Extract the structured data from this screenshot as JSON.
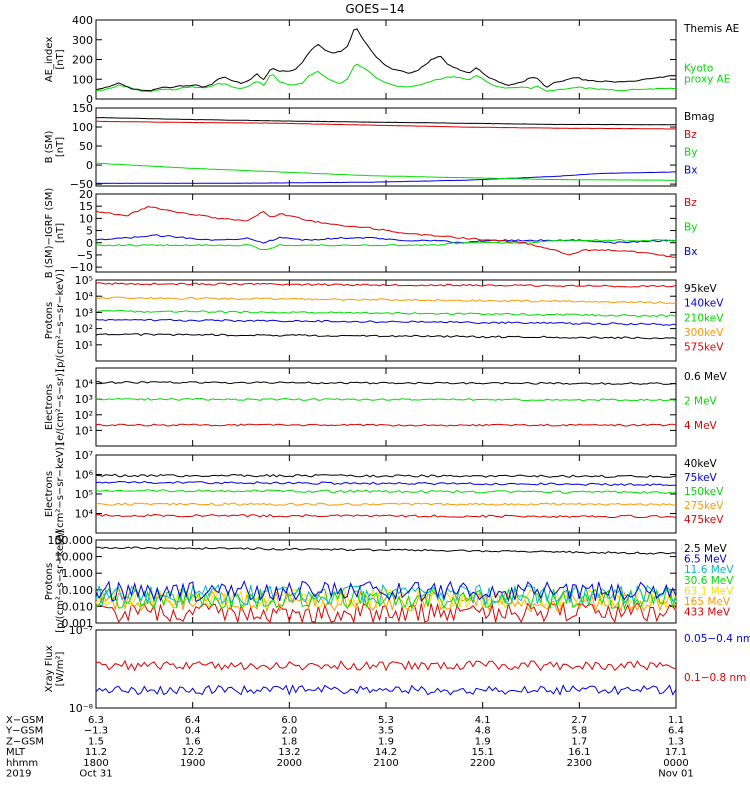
{
  "title": "GOES−14",
  "chart_data": [
    {
      "type": "line",
      "ylabel": [
        "AE_index",
        "[nT]"
      ],
      "ylim": [
        0,
        400
      ],
      "yticks": [
        "400",
        "300",
        "200",
        "100",
        "0"
      ],
      "ytick_values": [
        400,
        300,
        200,
        100,
        0
      ],
      "series": [
        {
          "name": "Kyoto proxy AE",
          "color": "#00dd00",
          "label_lines": [
            "Kyoto",
            "proxy AE"
          ],
          "x": [
            0,
            5,
            10,
            15,
            20,
            25,
            30,
            35,
            40,
            45,
            50,
            55,
            60,
            65,
            70,
            75,
            80,
            85,
            90,
            95,
            100,
            105,
            110,
            115,
            120,
            125,
            130,
            135,
            140,
            145,
            150,
            155,
            160,
            165,
            170,
            175,
            180,
            185,
            190,
            195,
            200,
            205,
            210,
            215,
            220,
            225,
            230,
            235,
            240,
            245,
            250,
            255,
            260,
            265,
            270,
            275,
            280,
            285,
            290,
            295,
            300,
            305,
            310,
            315,
            320,
            330,
            345,
            360,
            380
          ],
          "values": [
            40,
            45,
            55,
            70,
            65,
            50,
            40,
            35,
            45,
            50,
            45,
            55,
            60,
            60,
            55,
            65,
            80,
            75,
            60,
            55,
            65,
            90,
            70,
            130,
            90,
            75,
            70,
            80,
            120,
            140,
            110,
            90,
            80,
            100,
            180,
            160,
            130,
            100,
            80,
            70,
            65,
            60,
            70,
            80,
            90,
            100,
            110,
            115,
            105,
            100,
            120,
            95,
            70,
            60,
            55,
            60,
            60,
            55,
            65,
            40,
            45,
            50,
            55,
            60,
            55,
            50,
            45,
            50,
            55
          ]
        },
        {
          "name": "Themis AE",
          "color": "#000000",
          "label_lines": [
            "Themis AE"
          ],
          "x": [
            0,
            5,
            10,
            15,
            20,
            25,
            30,
            35,
            40,
            45,
            50,
            55,
            60,
            65,
            70,
            75,
            80,
            85,
            90,
            95,
            100,
            105,
            110,
            115,
            120,
            125,
            130,
            135,
            140,
            145,
            150,
            155,
            160,
            165,
            170,
            175,
            180,
            185,
            190,
            195,
            200,
            205,
            210,
            215,
            220,
            225,
            230,
            235,
            240,
            245,
            250,
            255,
            260,
            265,
            270,
            275,
            280,
            285,
            290,
            295,
            300,
            305,
            310,
            315,
            320,
            330,
            345,
            360,
            380
          ],
          "values": [
            45,
            55,
            65,
            80,
            60,
            50,
            45,
            40,
            50,
            60,
            55,
            70,
            65,
            70,
            60,
            70,
            100,
            110,
            90,
            80,
            90,
            130,
            95,
            160,
            140,
            140,
            150,
            180,
            240,
            280,
            250,
            230,
            240,
            270,
            370,
            300,
            250,
            200,
            170,
            150,
            140,
            130,
            140,
            170,
            200,
            220,
            180,
            160,
            140,
            130,
            160,
            120,
            100,
            80,
            70,
            80,
            90,
            110,
            100,
            60,
            80,
            90,
            100,
            110,
            95,
            90,
            85,
            100,
            120
          ]
        }
      ]
    },
    {
      "type": "line",
      "ylabel": [
        "B (SM)",
        "[nT]"
      ],
      "ylim": [
        -55,
        150
      ],
      "yticks": [
        "150",
        "100",
        "50",
        "0",
        "−50"
      ],
      "ytick_values": [
        150,
        100,
        50,
        0,
        -50
      ],
      "series": [
        {
          "name": "Bx",
          "color": "#0000dd",
          "x": [
            0,
            60,
            120,
            180,
            240,
            300,
            330,
            380
          ],
          "values": [
            -48,
            -48,
            -47,
            -45,
            -40,
            -30,
            -22,
            -18
          ]
        },
        {
          "name": "By",
          "color": "#00dd00",
          "x": [
            0,
            60,
            120,
            180,
            240,
            300,
            380
          ],
          "values": [
            5,
            -8,
            -18,
            -28,
            -33,
            -38,
            -40
          ]
        },
        {
          "name": "Bz",
          "color": "#dd0000",
          "x": [
            0,
            60,
            120,
            180,
            240,
            300,
            380
          ],
          "values": [
            115,
            112,
            110,
            105,
            100,
            97,
            95
          ]
        },
        {
          "name": "Bmag",
          "color": "#000000",
          "x": [
            0,
            60,
            120,
            180,
            240,
            300,
            380
          ],
          "values": [
            125,
            120,
            116,
            113,
            110,
            107,
            106
          ]
        }
      ]
    },
    {
      "type": "line",
      "ylabel": [
        "B (SM)−IGRF (SM)",
        "[nT]"
      ],
      "ylim": [
        -12,
        20
      ],
      "yticks": [
        "20",
        "15",
        "10",
        "5",
        "0",
        "−5",
        "−10"
      ],
      "ytick_values": [
        20,
        15,
        10,
        5,
        0,
        -5,
        -10
      ],
      "series": [
        {
          "name": "Bx",
          "color": "#0000dd",
          "x": [
            0,
            20,
            40,
            60,
            80,
            100,
            110,
            120,
            140,
            160,
            180,
            200,
            220,
            240,
            260,
            280,
            300,
            320,
            340,
            380
          ],
          "values": [
            1,
            2,
            3,
            2,
            1,
            2,
            0,
            2,
            1,
            2,
            2,
            1,
            1,
            0,
            1,
            1,
            1,
            1,
            0,
            1
          ]
        },
        {
          "name": "By",
          "color": "#00dd00",
          "x": [
            0,
            20,
            40,
            60,
            80,
            100,
            110,
            120,
            140,
            160,
            180,
            200,
            220,
            240,
            260,
            280,
            300,
            320,
            340,
            380
          ],
          "values": [
            -1,
            -1,
            -1,
            -1,
            -1,
            -1,
            -3,
            -1,
            -1,
            -1,
            -1,
            -1,
            -1,
            0,
            0,
            0,
            1,
            1,
            1,
            1
          ]
        },
        {
          "name": "Bz",
          "color": "#dd0000",
          "x": [
            0,
            20,
            35,
            40,
            60,
            80,
            100,
            110,
            115,
            120,
            140,
            160,
            180,
            200,
            220,
            240,
            260,
            280,
            300,
            310,
            320,
            340,
            360,
            380
          ],
          "values": [
            13,
            11,
            15,
            14,
            12,
            10,
            9,
            13,
            10,
            12,
            9,
            7,
            6,
            4,
            3,
            2,
            1,
            0,
            -3,
            -5,
            -3,
            -3,
            -4,
            -6
          ]
        }
      ]
    },
    {
      "type": "line",
      "log": true,
      "ylabel": [
        "Protons",
        "[p/(cm²−s−sr−keV)]"
      ],
      "ylim": [
        1,
        100000
      ],
      "yticks": [
        "10⁵",
        "10⁴",
        "10³",
        "10²",
        "10¹"
      ],
      "ytick_values": [
        100000,
        10000,
        1000,
        100,
        10
      ],
      "series": [
        {
          "name": "575keV",
          "color": "#dd0000",
          "x": [
            0,
            380
          ],
          "values": [
            60000,
            40000
          ]
        },
        {
          "name": "300keV",
          "color": "#ff9900",
          "x": [
            0,
            380
          ],
          "values": [
            8000,
            4000
          ]
        },
        {
          "name": "210keV",
          "color": "#00dd00",
          "x": [
            0,
            380
          ],
          "values": [
            1200,
            600
          ]
        },
        {
          "name": "140keV",
          "color": "#0000dd",
          "x": [
            0,
            380
          ],
          "values": [
            350,
            180
          ]
        },
        {
          "name": "95keV",
          "color": "#000000",
          "x": [
            0,
            380
          ],
          "values": [
            45,
            25
          ]
        }
      ]
    },
    {
      "type": "line",
      "log": true,
      "ylabel": [
        "Electrons",
        "[e/(cm²−s−sr)]"
      ],
      "ylim": [
        1,
        100000
      ],
      "yticks": [
        "10⁴",
        "10³",
        "10²",
        "10¹"
      ],
      "ytick_values": [
        10000,
        1000,
        100,
        10
      ],
      "series": [
        {
          "name": "4 MeV",
          "color": "#dd0000",
          "x": [
            0,
            380
          ],
          "values": [
            22,
            22
          ]
        },
        {
          "name": "2 MeV",
          "color": "#00dd00",
          "x": [
            0,
            380
          ],
          "values": [
            1000,
            900
          ]
        },
        {
          "name": "0.6 MeV",
          "color": "#000000",
          "x": [
            0,
            380
          ],
          "values": [
            12000,
            10000
          ]
        }
      ]
    },
    {
      "type": "line",
      "log": true,
      "ylabel": [
        "Electrons",
        "[e/(cm²−s−sr−keV)]"
      ],
      "ylim": [
        1000,
        10000000
      ],
      "yticks": [
        "10⁷",
        "10⁶",
        "10⁵",
        "10⁴"
      ],
      "ytick_values": [
        10000000,
        1000000,
        100000,
        10000
      ],
      "series": [
        {
          "name": "475keV",
          "color": "#dd0000",
          "x": [
            0,
            380
          ],
          "values": [
            8000,
            7000
          ]
        },
        {
          "name": "275keV",
          "color": "#ff9900",
          "x": [
            0,
            380
          ],
          "values": [
            30000,
            30000
          ]
        },
        {
          "name": "150keV",
          "color": "#00dd00",
          "x": [
            0,
            380
          ],
          "values": [
            150000,
            120000
          ]
        },
        {
          "name": "75keV",
          "color": "#0000dd",
          "x": [
            0,
            380
          ],
          "values": [
            400000,
            300000
          ]
        },
        {
          "name": "40keV",
          "color": "#000000",
          "x": [
            0,
            380
          ],
          "values": [
            900000,
            800000
          ]
        }
      ]
    },
    {
      "type": "line",
      "log": true,
      "ylabel": [
        "Protons",
        "[p/(cm²−s−sr−keV)]"
      ],
      "ylim": [
        0.001,
        100
      ],
      "yticks": [
        "100.000",
        "10.000",
        "1.000",
        "0.100",
        "0.010",
        "0.001"
      ],
      "ytick_values": [
        100,
        10,
        1,
        0.1,
        0.01,
        0.001
      ],
      "series": [
        {
          "name": "433 MeV",
          "color": "#dd0000",
          "x": [
            0,
            380
          ],
          "values": [
            0.004,
            0.004
          ]
        },
        {
          "name": "165 MeV",
          "color": "#ff9900",
          "x": [
            0,
            380
          ],
          "values": [
            0.02,
            0.02
          ]
        },
        {
          "name": "63.1 MeV",
          "color": "#ffdd00",
          "x": [
            0,
            380
          ],
          "values": [
            0.03,
            0.03
          ]
        },
        {
          "name": "30.6 MeV",
          "color": "#00dd00",
          "x": [
            0,
            380
          ],
          "values": [
            0.03,
            0.03
          ]
        },
        {
          "name": "11.6 MeV",
          "color": "#00bbbb",
          "x": [
            0,
            380
          ],
          "values": [
            0.05,
            0.05
          ]
        },
        {
          "name": "6.5 MeV",
          "color": "#0000dd",
          "x": [
            0,
            380
          ],
          "values": [
            0.08,
            0.08
          ]
        },
        {
          "name": "2.5 MeV",
          "color": "#000000",
          "x": [
            0,
            380
          ],
          "values": [
            35,
            15
          ]
        }
      ]
    },
    {
      "type": "line",
      "log": true,
      "ylabel": [
        "Xray Flux",
        "[W/m²]"
      ],
      "ylim": [
        1e-08,
        1e-07
      ],
      "yticks": [
        "10⁻⁷",
        "10⁻⁸"
      ],
      "ytick_values": [
        1e-07,
        1e-08
      ],
      "series": [
        {
          "name": "0.1−0.8 nm",
          "color": "#dd0000",
          "x": [
            0,
            380
          ],
          "values": [
            3.5e-08,
            3.5e-08
          ]
        },
        {
          "name": "0.05−0.4 nm",
          "color": "#0000dd",
          "x": [
            0,
            380
          ],
          "values": [
            1.7e-08,
            1.7e-08
          ]
        }
      ]
    }
  ],
  "time_axis": {
    "xlim": [
      0,
      380
    ],
    "rows": [
      {
        "label": "X−GSM",
        "values": [
          "6.3",
          "6.4",
          "6.0",
          "5.3",
          "4.1",
          "2.7",
          "1.1"
        ]
      },
      {
        "label": "Y−GSM",
        "values": [
          "−1.3",
          "0.4",
          "2.0",
          "3.5",
          "4.8",
          "5.8",
          "6.4"
        ]
      },
      {
        "label": "Z−GSM",
        "values": [
          "1.5",
          "1.6",
          "1.8",
          "1.9",
          "1.9",
          "1.7",
          "1.3"
        ]
      },
      {
        "label": "MLT",
        "values": [
          "11.2",
          "12.2",
          "13.2",
          "14.2",
          "15.1",
          "16.1",
          "17.1"
        ]
      },
      {
        "label": "hhmm",
        "values": [
          "1800",
          "1900",
          "2000",
          "2100",
          "2200",
          "2300",
          "0000"
        ]
      },
      {
        "label": "2019",
        "values": [
          "Oct 31",
          "",
          "",
          "",
          "",
          "",
          "Nov 01"
        ]
      }
    ]
  }
}
